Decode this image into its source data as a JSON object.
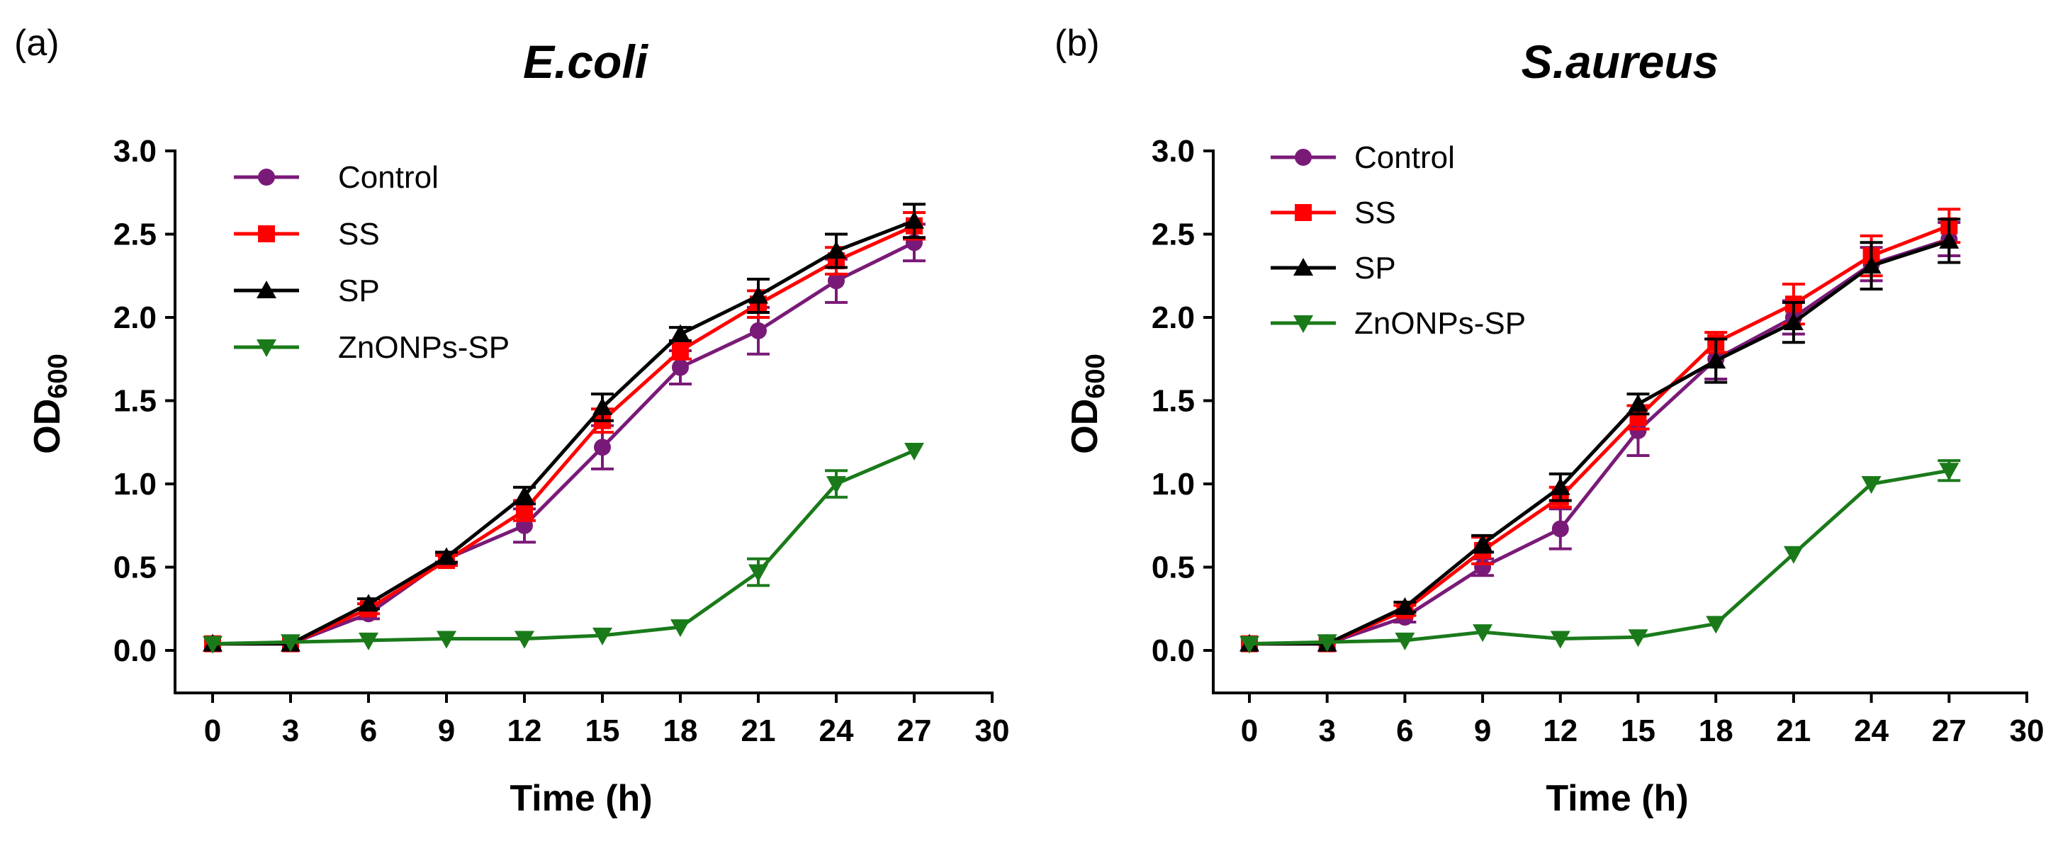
{
  "chart_data": [
    {
      "type": "line",
      "panel_label": "(a)",
      "title": "E.coli",
      "xlabel": "Time (h)",
      "ylabel_main": "OD",
      "ylabel_sub": "600",
      "xlim": [
        0,
        30
      ],
      "ylim": [
        -0.25,
        3.0
      ],
      "xticks": [
        "0",
        "3",
        "6",
        "9",
        "12",
        "15",
        "18",
        "21",
        "24",
        "27",
        "30"
      ],
      "yticks": [
        "0.0",
        "0.5",
        "1.0",
        "1.5",
        "2.0",
        "2.5",
        "3.0"
      ],
      "x": [
        0,
        3,
        6,
        9,
        12,
        15,
        18,
        21,
        24,
        27
      ],
      "legend_position": "top-left",
      "series": [
        {
          "name": "Control",
          "color": "#7a1a78",
          "marker": "circle",
          "values": [
            0.04,
            0.04,
            0.22,
            0.55,
            0.75,
            1.22,
            1.7,
            1.92,
            2.22,
            2.45
          ],
          "errors": [
            0.0,
            0.0,
            0.03,
            0.03,
            0.1,
            0.13,
            0.1,
            0.14,
            0.13,
            0.11
          ]
        },
        {
          "name": "SS",
          "color": "#ff0000",
          "marker": "square",
          "values": [
            0.04,
            0.04,
            0.25,
            0.54,
            0.84,
            1.38,
            1.8,
            2.08,
            2.34,
            2.55
          ],
          "errors": [
            0.0,
            0.0,
            0.03,
            0.03,
            0.06,
            0.07,
            0.05,
            0.08,
            0.08,
            0.08
          ]
        },
        {
          "name": "SP",
          "color": "#000000",
          "marker": "triangle-up",
          "values": [
            0.04,
            0.04,
            0.28,
            0.56,
            0.93,
            1.46,
            1.9,
            2.13,
            2.4,
            2.58
          ],
          "errors": [
            0.0,
            0.0,
            0.03,
            0.03,
            0.05,
            0.08,
            0.04,
            0.1,
            0.1,
            0.1
          ]
        },
        {
          "name": "ZnONPs-SP",
          "color": "#1a7a1a",
          "marker": "triangle-down",
          "values": [
            0.04,
            0.05,
            0.06,
            0.07,
            0.07,
            0.09,
            0.14,
            0.47,
            1.0,
            1.2
          ],
          "errors": [
            0.0,
            0.0,
            0.0,
            0.0,
            0.0,
            0.0,
            0.0,
            0.08,
            0.08,
            0.0
          ]
        }
      ]
    },
    {
      "type": "line",
      "panel_label": "(b)",
      "title": "S.aureus",
      "xlabel": "Time (h)",
      "ylabel_main": "OD",
      "ylabel_sub": "600",
      "xlim": [
        0,
        30
      ],
      "ylim": [
        -0.25,
        3.0
      ],
      "xticks": [
        "0",
        "3",
        "6",
        "9",
        "12",
        "15",
        "18",
        "21",
        "24",
        "27",
        "30"
      ],
      "yticks": [
        "0.0",
        "0.5",
        "1.0",
        "1.5",
        "2.0",
        "2.5",
        "3.0"
      ],
      "x": [
        0,
        3,
        6,
        9,
        12,
        15,
        18,
        21,
        24,
        27
      ],
      "legend_position": "top-left",
      "series": [
        {
          "name": "Control",
          "color": "#7a1a78",
          "marker": "circle",
          "values": [
            0.04,
            0.04,
            0.2,
            0.5,
            0.73,
            1.32,
            1.75,
            2.0,
            2.32,
            2.47
          ],
          "errors": [
            0.0,
            0.0,
            0.03,
            0.05,
            0.12,
            0.15,
            0.12,
            0.1,
            0.1,
            0.1
          ]
        },
        {
          "name": "SS",
          "color": "#ff0000",
          "marker": "square",
          "values": [
            0.04,
            0.04,
            0.24,
            0.6,
            0.92,
            1.4,
            1.85,
            2.08,
            2.37,
            2.55
          ],
          "errors": [
            0.0,
            0.0,
            0.03,
            0.08,
            0.06,
            0.07,
            0.06,
            0.12,
            0.12,
            0.1
          ]
        },
        {
          "name": "SP",
          "color": "#000000",
          "marker": "triangle-up",
          "values": [
            0.04,
            0.04,
            0.26,
            0.64,
            0.98,
            1.48,
            1.74,
            1.97,
            2.31,
            2.46
          ],
          "errors": [
            0.0,
            0.0,
            0.03,
            0.05,
            0.08,
            0.06,
            0.13,
            0.12,
            0.14,
            0.13
          ]
        },
        {
          "name": "ZnONPs-SP",
          "color": "#1a7a1a",
          "marker": "triangle-down",
          "values": [
            0.04,
            0.05,
            0.06,
            0.11,
            0.07,
            0.08,
            0.16,
            0.58,
            1.0,
            1.08
          ],
          "errors": [
            0.0,
            0.0,
            0.0,
            0.0,
            0.0,
            0.0,
            0.0,
            0.0,
            0.0,
            0.06
          ]
        }
      ]
    }
  ]
}
